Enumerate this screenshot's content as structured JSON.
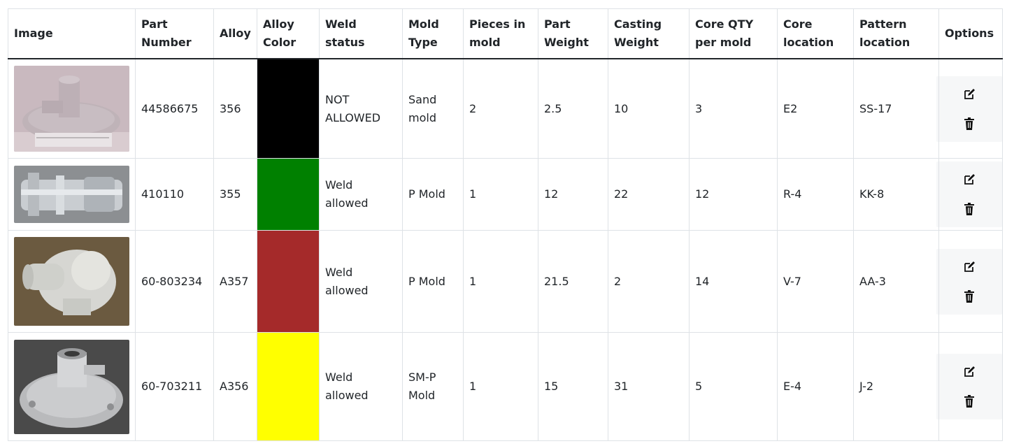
{
  "table": {
    "headers": {
      "image": "Image",
      "part_number": "Part Number",
      "alloy": "Alloy",
      "alloy_color": "Alloy Color",
      "weld_status": "Weld status",
      "mold_type": "Mold Type",
      "pieces_in_mold": "Pieces in mold",
      "part_weight": "Part Weight",
      "casting_weight": "Casting Weight",
      "core_qty": "Core QTY per mold",
      "core_location": "Core location",
      "pattern_location": "Pattern location",
      "options": "Options"
    },
    "rows": [
      {
        "part_number": "44586675",
        "alloy": "356",
        "alloy_color": "#000000",
        "weld_status": "NOT ALLOWED",
        "mold_type": "Sand mold",
        "pieces_in_mold": "2",
        "part_weight": "2.5",
        "casting_weight": "10",
        "core_qty": "3",
        "core_location": "E2",
        "pattern_location": "SS-17"
      },
      {
        "part_number": "410110",
        "alloy": "355",
        "alloy_color": "#008000",
        "weld_status": "Weld allowed",
        "mold_type": "P Mold",
        "pieces_in_mold": "1",
        "part_weight": "12",
        "casting_weight": "22",
        "core_qty": "12",
        "core_location": "R-4",
        "pattern_location": "KK-8"
      },
      {
        "part_number": "60-803234",
        "alloy": "A357",
        "alloy_color": "#a52a2a",
        "weld_status": "Weld allowed",
        "mold_type": "P Mold",
        "pieces_in_mold": "1",
        "part_weight": "21.5",
        "casting_weight": "2",
        "core_qty": "14",
        "core_location": "V-7",
        "pattern_location": "AA-3"
      },
      {
        "part_number": "60-703211",
        "alloy": "A356",
        "alloy_color": "#ffff00",
        "weld_status": "Weld allowed",
        "mold_type": "SM-P Mold",
        "pieces_in_mold": "1",
        "part_weight": "15",
        "casting_weight": "31",
        "core_qty": "5",
        "core_location": "E-4",
        "pattern_location": "J-2"
      }
    ]
  },
  "icons": {
    "edit": "edit-icon",
    "delete": "trash-icon"
  }
}
